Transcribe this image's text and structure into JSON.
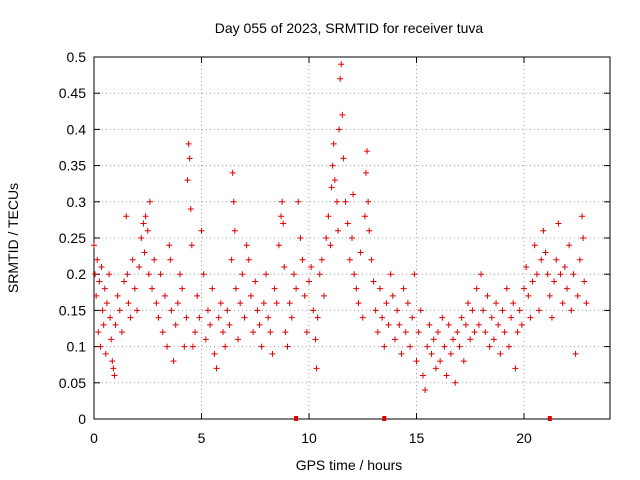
{
  "chart_data": {
    "type": "scatter",
    "title": "Day 055 of 2023, SRMTID for receiver tuva",
    "xlabel": "GPS time / hours",
    "ylabel": "SRMTID / TECUs",
    "xlim": [
      0,
      24
    ],
    "ylim": [
      0,
      0.5
    ],
    "xticks": [
      0,
      5,
      10,
      15,
      20
    ],
    "xtick_labels": [
      "0",
      "5",
      "10",
      "15",
      "20"
    ],
    "yticks": [
      0,
      0.05,
      0.1,
      0.15,
      0.2,
      0.25,
      0.3,
      0.35,
      0.4,
      0.45,
      0.5
    ],
    "ytick_labels": [
      "0",
      "0.05",
      "0.1",
      "0.15",
      "0.2",
      "0.25",
      "0.3",
      "0.35",
      "0.4",
      "0.45",
      "0.5"
    ],
    "grid": true,
    "marker": "plus",
    "point_color": "#e00000",
    "zero_markers": [
      9.4,
      13.5,
      21.2
    ],
    "series": [
      {
        "name": "SRMTID",
        "points": [
          [
            0.0,
            0.24
          ],
          [
            0.05,
            0.2
          ],
          [
            0.1,
            0.17
          ],
          [
            0.15,
            0.22
          ],
          [
            0.2,
            0.12
          ],
          [
            0.25,
            0.19
          ],
          [
            0.3,
            0.1
          ],
          [
            0.35,
            0.21
          ],
          [
            0.4,
            0.15
          ],
          [
            0.45,
            0.13
          ],
          [
            0.5,
            0.18
          ],
          [
            0.55,
            0.09
          ],
          [
            0.6,
            0.16
          ],
          [
            0.7,
            0.2
          ],
          [
            0.75,
            0.14
          ],
          [
            0.8,
            0.11
          ],
          [
            0.85,
            0.08
          ],
          [
            0.9,
            0.07
          ],
          [
            0.95,
            0.06
          ],
          [
            1.0,
            0.13
          ],
          [
            1.1,
            0.17
          ],
          [
            1.2,
            0.15
          ],
          [
            1.3,
            0.12
          ],
          [
            1.4,
            0.19
          ],
          [
            1.5,
            0.28
          ],
          [
            1.55,
            0.2
          ],
          [
            1.6,
            0.16
          ],
          [
            1.7,
            0.14
          ],
          [
            1.8,
            0.22
          ],
          [
            1.9,
            0.18
          ],
          [
            2.0,
            0.15
          ],
          [
            2.1,
            0.21
          ],
          [
            2.2,
            0.25
          ],
          [
            2.3,
            0.27
          ],
          [
            2.35,
            0.23
          ],
          [
            2.4,
            0.28
          ],
          [
            2.5,
            0.26
          ],
          [
            2.55,
            0.2
          ],
          [
            2.6,
            0.3
          ],
          [
            2.7,
            0.18
          ],
          [
            2.8,
            0.22
          ],
          [
            2.9,
            0.16
          ],
          [
            3.0,
            0.14
          ],
          [
            3.1,
            0.2
          ],
          [
            3.2,
            0.12
          ],
          [
            3.3,
            0.17
          ],
          [
            3.4,
            0.1
          ],
          [
            3.5,
            0.24
          ],
          [
            3.55,
            0.22
          ],
          [
            3.6,
            0.15
          ],
          [
            3.7,
            0.08
          ],
          [
            3.8,
            0.13
          ],
          [
            3.9,
            0.16
          ],
          [
            4.0,
            0.2
          ],
          [
            4.1,
            0.18
          ],
          [
            4.2,
            0.1
          ],
          [
            4.3,
            0.14
          ],
          [
            4.35,
            0.33
          ],
          [
            4.4,
            0.38
          ],
          [
            4.45,
            0.36
          ],
          [
            4.5,
            0.29
          ],
          [
            4.55,
            0.24
          ],
          [
            4.6,
            0.1
          ],
          [
            4.7,
            0.12
          ],
          [
            4.8,
            0.17
          ],
          [
            4.9,
            0.14
          ],
          [
            5.0,
            0.26
          ],
          [
            5.1,
            0.2
          ],
          [
            5.2,
            0.11
          ],
          [
            5.3,
            0.15
          ],
          [
            5.4,
            0.13
          ],
          [
            5.5,
            0.18
          ],
          [
            5.6,
            0.09
          ],
          [
            5.7,
            0.07
          ],
          [
            5.8,
            0.14
          ],
          [
            5.9,
            0.16
          ],
          [
            6.0,
            0.12
          ],
          [
            6.1,
            0.1
          ],
          [
            6.2,
            0.15
          ],
          [
            6.3,
            0.13
          ],
          [
            6.4,
            0.22
          ],
          [
            6.45,
            0.34
          ],
          [
            6.5,
            0.3
          ],
          [
            6.55,
            0.26
          ],
          [
            6.6,
            0.18
          ],
          [
            6.7,
            0.11
          ],
          [
            6.8,
            0.16
          ],
          [
            6.9,
            0.2
          ],
          [
            7.0,
            0.14
          ],
          [
            7.1,
            0.24
          ],
          [
            7.2,
            0.22
          ],
          [
            7.3,
            0.17
          ],
          [
            7.4,
            0.12
          ],
          [
            7.5,
            0.19
          ],
          [
            7.6,
            0.15
          ],
          [
            7.7,
            0.13
          ],
          [
            7.8,
            0.1
          ],
          [
            7.9,
            0.16
          ],
          [
            8.0,
            0.2
          ],
          [
            8.1,
            0.14
          ],
          [
            8.2,
            0.12
          ],
          [
            8.3,
            0.09
          ],
          [
            8.4,
            0.18
          ],
          [
            8.5,
            0.16
          ],
          [
            8.6,
            0.24
          ],
          [
            8.7,
            0.28
          ],
          [
            8.75,
            0.3
          ],
          [
            8.8,
            0.27
          ],
          [
            8.85,
            0.21
          ],
          [
            8.9,
            0.12
          ],
          [
            9.0,
            0.1
          ],
          [
            9.1,
            0.16
          ],
          [
            9.2,
            0.14
          ],
          [
            9.3,
            0.2
          ],
          [
            9.4,
            0.18
          ],
          [
            9.5,
            0.3
          ],
          [
            9.6,
            0.25
          ],
          [
            9.7,
            0.22
          ],
          [
            9.8,
            0.17
          ],
          [
            9.9,
            0.12
          ],
          [
            10.0,
            0.19
          ],
          [
            10.1,
            0.21
          ],
          [
            10.2,
            0.15
          ],
          [
            10.3,
            0.11
          ],
          [
            10.35,
            0.07
          ],
          [
            10.4,
            0.14
          ],
          [
            10.5,
            0.2
          ],
          [
            10.6,
            0.22
          ],
          [
            10.7,
            0.17
          ],
          [
            10.8,
            0.25
          ],
          [
            10.9,
            0.28
          ],
          [
            11.0,
            0.24
          ],
          [
            11.05,
            0.32
          ],
          [
            11.1,
            0.35
          ],
          [
            11.15,
            0.38
          ],
          [
            11.2,
            0.33
          ],
          [
            11.3,
            0.3
          ],
          [
            11.35,
            0.26
          ],
          [
            11.4,
            0.4
          ],
          [
            11.45,
            0.47
          ],
          [
            11.5,
            0.49
          ],
          [
            11.55,
            0.42
          ],
          [
            11.6,
            0.36
          ],
          [
            11.7,
            0.3
          ],
          [
            11.8,
            0.27
          ],
          [
            11.9,
            0.22
          ],
          [
            12.0,
            0.25
          ],
          [
            12.05,
            0.31
          ],
          [
            12.1,
            0.2
          ],
          [
            12.2,
            0.18
          ],
          [
            12.3,
            0.16
          ],
          [
            12.4,
            0.23
          ],
          [
            12.5,
            0.14
          ],
          [
            12.6,
            0.28
          ],
          [
            12.65,
            0.34
          ],
          [
            12.7,
            0.37
          ],
          [
            12.75,
            0.3
          ],
          [
            12.8,
            0.26
          ],
          [
            12.9,
            0.22
          ],
          [
            13.0,
            0.19
          ],
          [
            13.1,
            0.15
          ],
          [
            13.2,
            0.12
          ],
          [
            13.3,
            0.18
          ],
          [
            13.4,
            0.14
          ],
          [
            13.5,
            0.1
          ],
          [
            13.6,
            0.16
          ],
          [
            13.7,
            0.13
          ],
          [
            13.8,
            0.2
          ],
          [
            13.9,
            0.17
          ],
          [
            14.0,
            0.11
          ],
          [
            14.1,
            0.15
          ],
          [
            14.2,
            0.13
          ],
          [
            14.3,
            0.09
          ],
          [
            14.4,
            0.18
          ],
          [
            14.5,
            0.12
          ],
          [
            14.6,
            0.16
          ],
          [
            14.7,
            0.1
          ],
          [
            14.8,
            0.14
          ],
          [
            14.9,
            0.2
          ],
          [
            15.0,
            0.08
          ],
          [
            15.1,
            0.12
          ],
          [
            15.2,
            0.15
          ],
          [
            15.3,
            0.06
          ],
          [
            15.4,
            0.04
          ],
          [
            15.5,
            0.1
          ],
          [
            15.6,
            0.13
          ],
          [
            15.7,
            0.09
          ],
          [
            15.8,
            0.11
          ],
          [
            15.9,
            0.07
          ],
          [
            16.0,
            0.12
          ],
          [
            16.1,
            0.08
          ],
          [
            16.2,
            0.14
          ],
          [
            16.3,
            0.1
          ],
          [
            16.4,
            0.06
          ],
          [
            16.5,
            0.13
          ],
          [
            16.6,
            0.09
          ],
          [
            16.7,
            0.11
          ],
          [
            16.8,
            0.05
          ],
          [
            16.9,
            0.12
          ],
          [
            17.0,
            0.1
          ],
          [
            17.1,
            0.14
          ],
          [
            17.2,
            0.08
          ],
          [
            17.3,
            0.13
          ],
          [
            17.4,
            0.16
          ],
          [
            17.5,
            0.11
          ],
          [
            17.6,
            0.15
          ],
          [
            17.7,
            0.12
          ],
          [
            17.8,
            0.18
          ],
          [
            17.9,
            0.13
          ],
          [
            18.0,
            0.2
          ],
          [
            18.1,
            0.15
          ],
          [
            18.2,
            0.12
          ],
          [
            18.3,
            0.17
          ],
          [
            18.4,
            0.1
          ],
          [
            18.5,
            0.14
          ],
          [
            18.6,
            0.11
          ],
          [
            18.7,
            0.16
          ],
          [
            18.8,
            0.13
          ],
          [
            18.9,
            0.09
          ],
          [
            19.0,
            0.15
          ],
          [
            19.1,
            0.12
          ],
          [
            19.2,
            0.18
          ],
          [
            19.3,
            0.1
          ],
          [
            19.4,
            0.14
          ],
          [
            19.5,
            0.16
          ],
          [
            19.6,
            0.07
          ],
          [
            19.7,
            0.12
          ],
          [
            19.8,
            0.15
          ],
          [
            19.9,
            0.13
          ],
          [
            20.0,
            0.18
          ],
          [
            20.1,
            0.21
          ],
          [
            20.2,
            0.17
          ],
          [
            20.3,
            0.14
          ],
          [
            20.4,
            0.19
          ],
          [
            20.5,
            0.24
          ],
          [
            20.6,
            0.2
          ],
          [
            20.7,
            0.15
          ],
          [
            20.8,
            0.22
          ],
          [
            20.9,
            0.26
          ],
          [
            21.0,
            0.23
          ],
          [
            21.1,
            0.2
          ],
          [
            21.2,
            0.17
          ],
          [
            21.3,
            0.14
          ],
          [
            21.4,
            0.19
          ],
          [
            21.5,
            0.22
          ],
          [
            21.6,
            0.27
          ],
          [
            21.7,
            0.2
          ],
          [
            21.8,
            0.16
          ],
          [
            21.9,
            0.21
          ],
          [
            22.0,
            0.18
          ],
          [
            22.1,
            0.24
          ],
          [
            22.2,
            0.15
          ],
          [
            22.3,
            0.2
          ],
          [
            22.4,
            0.09
          ],
          [
            22.5,
            0.17
          ],
          [
            22.6,
            0.22
          ],
          [
            22.7,
            0.28
          ],
          [
            22.75,
            0.25
          ],
          [
            22.8,
            0.19
          ],
          [
            22.9,
            0.16
          ]
        ]
      }
    ]
  }
}
